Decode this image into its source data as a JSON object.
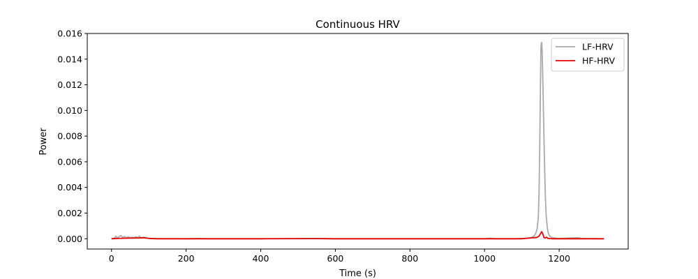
{
  "chart_data": {
    "type": "line",
    "title": "Continuous HRV",
    "xlabel": "Time (s)",
    "ylabel": "Power",
    "xlim": [
      -65,
      1385
    ],
    "ylim": [
      -0.0008,
      0.016
    ],
    "xticks": [
      0,
      200,
      400,
      600,
      800,
      1000,
      1200
    ],
    "xtick_labels": [
      "0",
      "200",
      "400",
      "600",
      "800",
      "1000",
      "1200"
    ],
    "yticks": [
      0.0,
      0.002,
      0.004,
      0.006,
      0.008,
      0.01,
      0.012,
      0.014,
      0.016
    ],
    "ytick_labels": [
      "0.000",
      "0.002",
      "0.004",
      "0.006",
      "0.008",
      "0.010",
      "0.012",
      "0.014",
      "0.016"
    ],
    "grid": false,
    "legend_position": "top-right",
    "series": [
      {
        "name": "LF-HRV",
        "color": "#aaaaaa",
        "points": [
          [
            0,
            0.0
          ],
          [
            8,
            5e-05
          ],
          [
            12,
            0.0002
          ],
          [
            16,
            8e-05
          ],
          [
            20,
            0.00015
          ],
          [
            25,
            0.00025
          ],
          [
            30,
            0.0001
          ],
          [
            35,
            0.00018
          ],
          [
            40,
            8e-05
          ],
          [
            45,
            0.00015
          ],
          [
            50,
            6e-05
          ],
          [
            55,
            0.00012
          ],
          [
            60,
            8e-05
          ],
          [
            65,
            0.00015
          ],
          [
            70,
            0.0001
          ],
          [
            75,
            0.0002
          ],
          [
            80,
            5e-05
          ],
          [
            85,
            0.00012
          ],
          [
            90,
            0.0001
          ],
          [
            95,
            6e-05
          ],
          [
            100,
            2e-05
          ],
          [
            120,
            1e-05
          ],
          [
            200,
            0.0
          ],
          [
            230,
            2e-05
          ],
          [
            260,
            0.0
          ],
          [
            400,
            0.0
          ],
          [
            550,
            2e-05
          ],
          [
            600,
            0.0
          ],
          [
            800,
            0.0
          ],
          [
            1000,
            0.0
          ],
          [
            1015,
            4e-05
          ],
          [
            1030,
            0.0
          ],
          [
            1080,
            0.0
          ],
          [
            1100,
            2e-05
          ],
          [
            1115,
            5e-05
          ],
          [
            1125,
            0.0001
          ],
          [
            1132,
            0.0002
          ],
          [
            1137,
            0.0004
          ],
          [
            1141,
            0.0008
          ],
          [
            1144,
            0.0016
          ],
          [
            1146,
            0.0035
          ],
          [
            1148,
            0.0075
          ],
          [
            1150,
            0.0125
          ],
          [
            1151,
            0.0148
          ],
          [
            1152,
            0.0152
          ],
          [
            1153,
            0.0153
          ],
          [
            1154,
            0.0149
          ],
          [
            1155,
            0.0138
          ],
          [
            1157,
            0.0112
          ],
          [
            1159,
            0.0082
          ],
          [
            1161,
            0.0055
          ],
          [
            1163,
            0.0033
          ],
          [
            1165,
            0.0019
          ],
          [
            1168,
            0.0009
          ],
          [
            1171,
            0.0004
          ],
          [
            1175,
            0.0002
          ],
          [
            1180,
            0.0001
          ],
          [
            1190,
            5e-05
          ],
          [
            1200,
            2e-05
          ],
          [
            1250,
            8e-05
          ],
          [
            1260,
            2e-05
          ],
          [
            1320,
            0.0
          ]
        ]
      },
      {
        "name": "HF-HRV",
        "color": "#e60000",
        "points": [
          [
            0,
            0.0
          ],
          [
            20,
            3e-05
          ],
          [
            50,
            5e-05
          ],
          [
            75,
            6e-05
          ],
          [
            85,
            8e-05
          ],
          [
            100,
            3e-05
          ],
          [
            120,
            0.0
          ],
          [
            400,
            0.0
          ],
          [
            550,
            1e-05
          ],
          [
            600,
            0.0
          ],
          [
            1000,
            0.0
          ],
          [
            1100,
            0.0
          ],
          [
            1120,
            5e-05
          ],
          [
            1130,
            8e-05
          ],
          [
            1140,
            0.0001
          ],
          [
            1146,
            0.0002
          ],
          [
            1150,
            0.0004
          ],
          [
            1153,
            0.00055
          ],
          [
            1156,
            0.0004
          ],
          [
            1159,
            0.0001
          ],
          [
            1162,
            5e-05
          ],
          [
            1166,
            0.00012
          ],
          [
            1170,
            3e-05
          ],
          [
            1180,
            0.0
          ],
          [
            1320,
            0.0
          ]
        ]
      }
    ]
  }
}
